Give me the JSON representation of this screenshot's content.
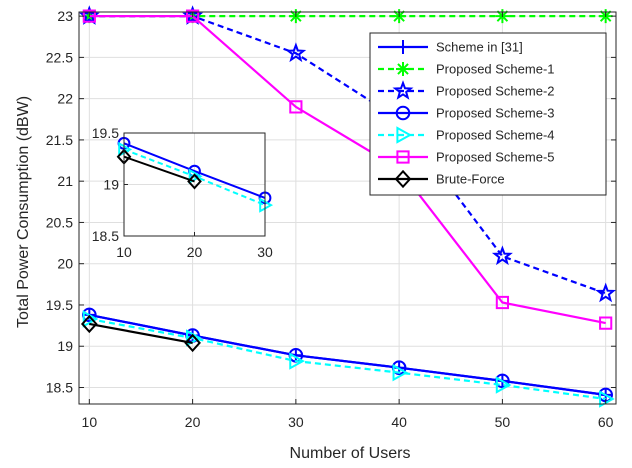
{
  "chart_data": {
    "type": "line",
    "xlabel": "Number of Users",
    "ylabel": "Total Power Consumption (dBW)",
    "xlim": [
      9,
      61
    ],
    "ylim": [
      18.3,
      23.05
    ],
    "x": [
      10,
      20,
      30,
      40,
      50,
      60
    ],
    "xticks": [
      "10",
      "20",
      "30",
      "40",
      "50",
      "60"
    ],
    "yticks": [
      "18.5",
      "19",
      "19.5",
      "20",
      "20.5",
      "21",
      "21.5",
      "22",
      "22.5",
      "23"
    ],
    "grid": true,
    "legend_position": "top-right",
    "series": [
      {
        "name": "Scheme in [31]",
        "color": "#0000ff",
        "dash": "solid",
        "marker": "plus",
        "values": [
          19.38,
          19.13,
          18.89,
          18.74,
          18.58,
          18.41
        ]
      },
      {
        "name": "Proposed Scheme-1",
        "color": "#00ff00",
        "dash": "dashed",
        "marker": "asterisk",
        "values": [
          23.0,
          23.0,
          23.0,
          23.0,
          23.0,
          23.0
        ]
      },
      {
        "name": "Proposed Scheme-2",
        "color": "#0000ff",
        "dash": "dashed",
        "marker": "star",
        "values": [
          23.0,
          23.0,
          22.55,
          21.75,
          20.09,
          19.64
        ]
      },
      {
        "name": "Proposed Scheme-3",
        "color": "#0000ff",
        "dash": "solid",
        "marker": "circle",
        "values": [
          19.38,
          19.13,
          18.89,
          18.74,
          18.58,
          18.41
        ]
      },
      {
        "name": "Proposed Scheme-4",
        "color": "#00ffff",
        "dash": "dashed",
        "marker": "triangle-right",
        "values": [
          19.33,
          19.1,
          18.82,
          18.68,
          18.53,
          18.36
        ]
      },
      {
        "name": "Proposed Scheme-5",
        "color": "#ff00ff",
        "dash": "solid",
        "marker": "square",
        "values": [
          23.0,
          23.0,
          21.9,
          21.15,
          19.53,
          19.28
        ]
      },
      {
        "name": "Brute-Force",
        "color": "#000000",
        "dash": "solid",
        "marker": "diamond",
        "values": [
          19.27,
          19.04,
          null,
          null,
          null,
          null
        ]
      }
    ],
    "inset": {
      "xlim": [
        10,
        30
      ],
      "ylim": [
        18.5,
        19.5
      ],
      "xticks": [
        "10",
        "20",
        "30"
      ],
      "yticks": [
        "18.5",
        "19",
        "19.5"
      ],
      "x": [
        10,
        20,
        30
      ],
      "series": [
        {
          "ref": 3,
          "values": [
            19.4,
            19.13,
            18.87
          ]
        },
        {
          "ref": 4,
          "values": [
            19.34,
            19.08,
            18.8
          ]
        },
        {
          "ref": 6,
          "values": [
            19.27,
            19.03,
            null
          ]
        }
      ]
    }
  }
}
